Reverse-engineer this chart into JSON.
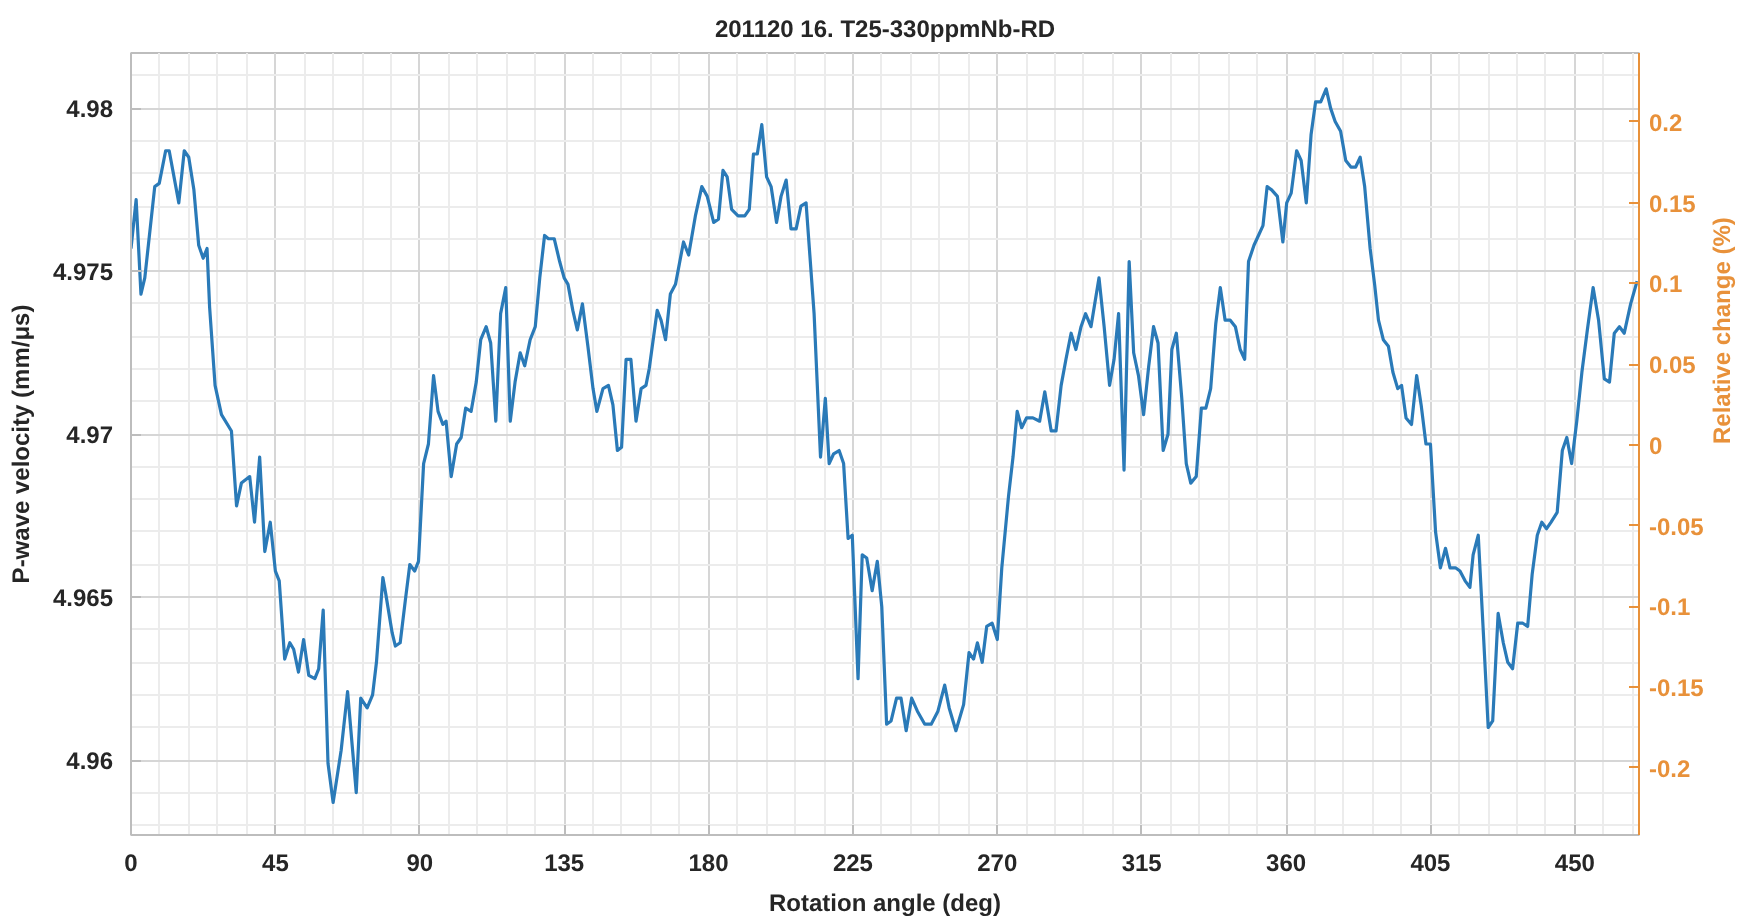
{
  "chart_data": {
    "type": "line",
    "title": "201120 16. T25-330ppmNb-RD",
    "xlabel": "Rotation angle (deg)",
    "ylabel": "P-wave velocity (mm/μs)",
    "y2label": "Relative change (%)",
    "xlim": [
      0,
      470
    ],
    "xticks": [
      0,
      45,
      90,
      135,
      180,
      225,
      270,
      315,
      360,
      405,
      450
    ],
    "ylim": [
      4.9577,
      4.9817
    ],
    "yticks": [
      4.96,
      4.965,
      4.97,
      4.975,
      4.98
    ],
    "y2lim": [
      -0.2415,
      0.2427
    ],
    "y2ticks": [
      -0.2,
      -0.15,
      -0.1,
      -0.05,
      0,
      0.05,
      0.1,
      0.15,
      0.2
    ],
    "grid": true,
    "series": [
      {
        "color": "#2a7ab8",
        "x": [
          0,
          1.6,
          3.1,
          4.3,
          7.4,
          8.8,
          10.8,
          11.9,
          14.9,
          16.6,
          18.0,
          19.6,
          21.1,
          22.5,
          23.7,
          24.5,
          26.2,
          28.2,
          31.3,
          32.9,
          34.4,
          37.0,
          38.5,
          40.1,
          41.7,
          43.4,
          45.0,
          46.2,
          47.9,
          49.5,
          50.7,
          52.2,
          53.8,
          55.4,
          57.3,
          58.5,
          59.9,
          61.4,
          63.0,
          65.5,
          67.5,
          70.2,
          71.6,
          73.6,
          75.3,
          76.5,
          78.5,
          79.4,
          81.4,
          82.4,
          83.9,
          85.5,
          86.9,
          88.4,
          89.6,
          91.2,
          92.7,
          94.3,
          95.7,
          97.2,
          98.2,
          99.8,
          101.5,
          102.9,
          104.3,
          106.0,
          107.6,
          109.0,
          110.7,
          112.1,
          113.7,
          115.2,
          116.8,
          118.2,
          119.7,
          121.3,
          122.7,
          124.4,
          126.0,
          127.4,
          128.9,
          130.1,
          131.9,
          133.6,
          135.0,
          136.2,
          137.7,
          139.1,
          140.7,
          142.4,
          144.0,
          145.2,
          147.1,
          148.8,
          150.2,
          151.6,
          152.9,
          154.3,
          155.8,
          157.4,
          159.0,
          160.5,
          161.5,
          164.0,
          165.2,
          166.6,
          168.1,
          169.7,
          172.2,
          173.8,
          175.9,
          177.9,
          179.6,
          181.6,
          183.1,
          184.5,
          185.8,
          187.2,
          189.2,
          191.3,
          192.7,
          194.0,
          195.2,
          196.6,
          198.1,
          199.5,
          201.2,
          202.6,
          204.2,
          205.7,
          207.3,
          208.8,
          210.4,
          212.9,
          214.9,
          216.4,
          217.6,
          219.0,
          220.7,
          222.1,
          223.5,
          224.8,
          226.6,
          227.9,
          229.3,
          231.0,
          232.6,
          234.0,
          235.5,
          236.9,
          238.6,
          240.0,
          241.6,
          243.3,
          245.1,
          247.4,
          249.4,
          251.5,
          253.6,
          255.0,
          257.1,
          259.5,
          261.2,
          262.6,
          263.8,
          265.3,
          266.7,
          268.4,
          270.0,
          271.4,
          273.5,
          274.9,
          276.2,
          277.6,
          279.1,
          281.1,
          283.2,
          284.8,
          286.8,
          288.3,
          289.9,
          291.4,
          293.0,
          294.5,
          296.1,
          297.5,
          299.2,
          301.7,
          303.3,
          305.0,
          306.4,
          307.8,
          309.5,
          311.1,
          312.5,
          314.0,
          315.6,
          317.2,
          318.7,
          320.1,
          321.7,
          323.2,
          324.4,
          325.8,
          327.5,
          328.9,
          330.3,
          332.0,
          333.6,
          335.0,
          336.5,
          338.1,
          339.5,
          341.0,
          342.6,
          344.2,
          345.7,
          347.1,
          348.3,
          350.0,
          351.4,
          352.8,
          354.1,
          355.5,
          357.3,
          359.0,
          360.2,
          361.6,
          363.3,
          364.7,
          366.3,
          367.8,
          369.2,
          370.8,
          372.5,
          373.9,
          375.3,
          377.0,
          378.6,
          380.2,
          381.7,
          383.1,
          384.5,
          386.2,
          387.6,
          388.8,
          390.3,
          391.9,
          393.3,
          394.8,
          396.0,
          397.4,
          399.1,
          400.7,
          402.1,
          403.6,
          405.0,
          406.6,
          408.1,
          409.7,
          411.1,
          412.8,
          414.2,
          415.8,
          417.3,
          418.3,
          419.9,
          421.6,
          423.0,
          424.4,
          426.1,
          427.7,
          429.1,
          430.6,
          432.2,
          433.8,
          435.3,
          436.7,
          438.3,
          439.7,
          441.2,
          442.6,
          444.5,
          446.1,
          447.5,
          449.0,
          450.6,
          452.2,
          453.9,
          455.7,
          457.4,
          459.2,
          460.8,
          462.3,
          463.9,
          465.4,
          467.4,
          469.4
        ],
        "values": [
          4.9757,
          4.9772,
          4.9743,
          4.9748,
          4.9776,
          4.9777,
          4.9787,
          4.9787,
          4.9771,
          4.9787,
          4.9785,
          4.9775,
          4.9758,
          4.9754,
          4.9757,
          4.9739,
          4.9715,
          4.9706,
          4.9701,
          4.9678,
          4.9685,
          4.9687,
          4.9673,
          4.9693,
          4.9664,
          4.9673,
          4.9658,
          4.9655,
          4.9631,
          4.9636,
          4.9634,
          4.9627,
          4.9637,
          4.9626,
          4.9625,
          4.9628,
          4.9646,
          4.9599,
          4.9587,
          4.9603,
          4.9621,
          4.959,
          4.9619,
          4.9616,
          4.962,
          4.963,
          4.9656,
          4.9651,
          4.9639,
          4.9635,
          4.9636,
          4.9649,
          4.966,
          4.9658,
          4.9661,
          4.9691,
          4.9697,
          4.9718,
          4.9707,
          4.9703,
          4.9704,
          4.9687,
          4.9697,
          4.9699,
          4.9708,
          4.9707,
          4.9716,
          4.9729,
          4.9733,
          4.9728,
          4.9704,
          4.9737,
          4.9745,
          4.9704,
          4.9716,
          4.9725,
          4.9721,
          4.9729,
          4.9733,
          4.9748,
          4.9761,
          4.976,
          4.976,
          4.9753,
          4.9748,
          4.9746,
          4.9738,
          4.9732,
          4.974,
          4.9727,
          4.9714,
          4.9707,
          4.9714,
          4.9715,
          4.9709,
          4.9695,
          4.9696,
          4.9723,
          4.9723,
          4.9704,
          4.9714,
          4.9715,
          4.972,
          4.9738,
          4.9735,
          4.9729,
          4.9743,
          4.9746,
          4.9759,
          4.9755,
          4.9767,
          4.9776,
          4.9773,
          4.9765,
          4.9766,
          4.9781,
          4.9779,
          4.9769,
          4.9767,
          4.9767,
          4.9769,
          4.9786,
          4.9786,
          4.9795,
          4.9779,
          4.9776,
          4.9765,
          4.9773,
          4.9778,
          4.9763,
          4.9763,
          4.977,
          4.9771,
          4.9737,
          4.9693,
          4.9711,
          4.9691,
          4.9694,
          4.9695,
          4.9691,
          4.9668,
          4.9669,
          4.9625,
          4.9663,
          4.9662,
          4.9652,
          4.9661,
          4.9647,
          4.9611,
          4.9612,
          4.9619,
          4.9619,
          4.9609,
          4.9619,
          4.9615,
          4.9611,
          4.9611,
          4.9615,
          4.9623,
          4.9616,
          4.9609,
          4.9617,
          4.9633,
          4.9631,
          4.9636,
          4.963,
          4.9641,
          4.9642,
          4.9637,
          4.9659,
          4.9681,
          4.9693,
          4.9707,
          4.9702,
          4.9705,
          4.9705,
          4.9704,
          4.9713,
          4.9701,
          4.9701,
          4.9715,
          4.9723,
          4.9731,
          4.9726,
          4.9733,
          4.9737,
          4.9733,
          4.9748,
          4.9733,
          4.9715,
          4.9723,
          4.9737,
          4.9689,
          4.9753,
          4.9725,
          4.9718,
          4.9706,
          4.9721,
          4.9733,
          4.9728,
          4.9695,
          4.97,
          4.9726,
          4.9731,
          4.9711,
          4.9691,
          4.9685,
          4.9687,
          4.9708,
          4.9708,
          4.9714,
          4.9734,
          4.9745,
          4.9735,
          4.9735,
          4.9733,
          4.9726,
          4.9723,
          4.9753,
          4.9758,
          4.9761,
          4.9764,
          4.9776,
          4.9775,
          4.9773,
          4.9759,
          4.9771,
          4.9774,
          4.9787,
          4.9784,
          4.9771,
          4.9792,
          4.9802,
          4.9802,
          4.9806,
          4.98,
          4.9796,
          4.9793,
          4.9784,
          4.9782,
          4.9782,
          4.9785,
          4.9776,
          4.9757,
          4.9746,
          4.9735,
          4.9729,
          4.9727,
          4.9719,
          4.9714,
          4.9715,
          4.9705,
          4.9703,
          4.9718,
          4.9709,
          4.9697,
          4.9697,
          4.967,
          4.9659,
          4.9665,
          4.9659,
          4.9659,
          4.9658,
          4.9655,
          4.9653,
          4.9663,
          4.9669,
          4.9637,
          4.961,
          4.9612,
          4.9645,
          4.9636,
          4.963,
          4.9628,
          4.9642,
          4.9642,
          4.9641,
          4.9657,
          4.9669,
          4.9673,
          4.9671,
          4.9673,
          4.9676,
          4.9695,
          4.9699,
          4.9691,
          4.9704,
          4.9719,
          4.9732,
          4.9745,
          4.9735,
          4.9717,
          4.9716,
          4.9731,
          4.9733,
          4.9731,
          4.974,
          4.9747
        ]
      }
    ]
  }
}
